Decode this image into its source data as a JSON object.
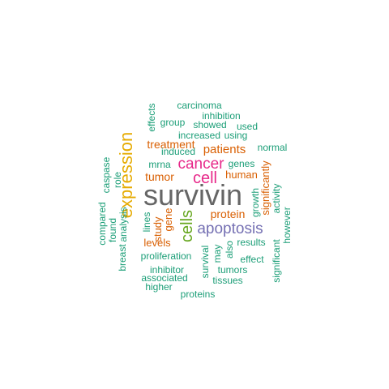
{
  "colors": {
    "teal": "#1b9e77",
    "orange": "#d95f02",
    "purple": "#7570b3",
    "magenta": "#e7298a",
    "green": "#66a61e",
    "gold": "#e6ab02",
    "gray": "#666666"
  },
  "words": [
    {
      "text": "survivin",
      "color": "gray"
    },
    {
      "text": "expression",
      "color": "gold"
    },
    {
      "text": "cells",
      "color": "green"
    },
    {
      "text": "cell",
      "color": "magenta"
    },
    {
      "text": "cancer",
      "color": "magenta"
    },
    {
      "text": "apoptosis",
      "color": "purple"
    },
    {
      "text": "patients",
      "color": "orange"
    },
    {
      "text": "treatment",
      "color": "orange"
    },
    {
      "text": "tumor",
      "color": "orange"
    },
    {
      "text": "protein",
      "color": "orange"
    },
    {
      "text": "human",
      "color": "orange"
    },
    {
      "text": "levels",
      "color": "orange"
    },
    {
      "text": "gene",
      "color": "orange"
    },
    {
      "text": "study",
      "color": "orange"
    },
    {
      "text": "significantly",
      "color": "orange"
    },
    {
      "text": "carcinoma",
      "color": "teal"
    },
    {
      "text": "inhibition",
      "color": "teal"
    },
    {
      "text": "group",
      "color": "teal"
    },
    {
      "text": "showed",
      "color": "teal"
    },
    {
      "text": "used",
      "color": "teal"
    },
    {
      "text": "increased",
      "color": "teal"
    },
    {
      "text": "using",
      "color": "teal"
    },
    {
      "text": "normal",
      "color": "teal"
    },
    {
      "text": "induced",
      "color": "teal"
    },
    {
      "text": "mrna",
      "color": "teal"
    },
    {
      "text": "genes",
      "color": "teal"
    },
    {
      "text": "effects",
      "color": "teal"
    },
    {
      "text": "caspase",
      "color": "teal"
    },
    {
      "text": "role",
      "color": "teal"
    },
    {
      "text": "compared",
      "color": "teal"
    },
    {
      "text": "found",
      "color": "teal"
    },
    {
      "text": "analysis",
      "color": "teal"
    },
    {
      "text": "breast",
      "color": "teal"
    },
    {
      "text": "lines",
      "color": "teal"
    },
    {
      "text": "growth",
      "color": "teal"
    },
    {
      "text": "activity",
      "color": "teal"
    },
    {
      "text": "however",
      "color": "teal"
    },
    {
      "text": "results",
      "color": "teal"
    },
    {
      "text": "also",
      "color": "teal"
    },
    {
      "text": "may",
      "color": "teal"
    },
    {
      "text": "survival",
      "color": "teal"
    },
    {
      "text": "effect",
      "color": "teal"
    },
    {
      "text": "significant",
      "color": "teal"
    },
    {
      "text": "proliferation",
      "color": "teal"
    },
    {
      "text": "inhibitor",
      "color": "teal"
    },
    {
      "text": "tumors",
      "color": "teal"
    },
    {
      "text": "associated",
      "color": "teal"
    },
    {
      "text": "tissues",
      "color": "teal"
    },
    {
      "text": "higher",
      "color": "teal"
    },
    {
      "text": "proteins",
      "color": "teal"
    }
  ]
}
